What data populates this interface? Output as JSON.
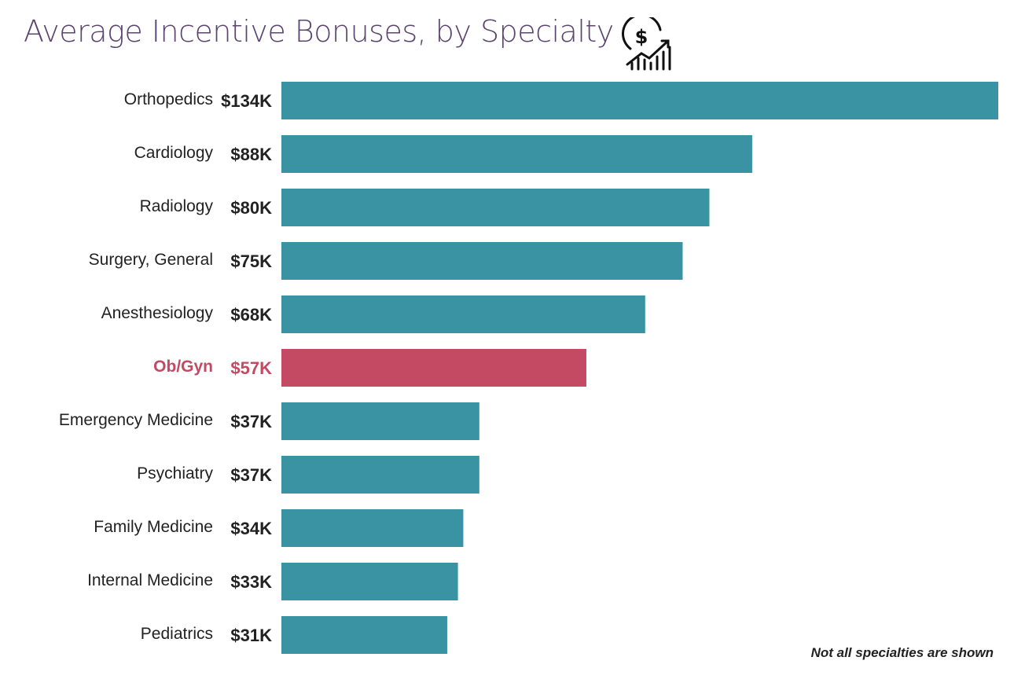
{
  "chart_data": {
    "type": "bar",
    "orientation": "horizontal",
    "title": "Average Incentive Bonuses, by Specialty",
    "categories": [
      "Orthopedics",
      "Cardiology",
      "Radiology",
      "Surgery, General",
      "Anesthesiology",
      "Ob/Gyn",
      "Emergency Medicine",
      "Psychiatry",
      "Family Medicine",
      "Internal Medicine",
      "Pediatrics"
    ],
    "values": [
      134,
      88,
      80,
      75,
      68,
      57,
      37,
      37,
      34,
      33,
      31
    ],
    "value_labels": [
      "$134K",
      "$88K",
      "$80K",
      "$75K",
      "$68K",
      "$57K",
      "$37K",
      "$37K",
      "$34K",
      "$33K",
      "$31K"
    ],
    "unit": "thousand USD",
    "highlight": "Ob/Gyn",
    "colors": {
      "default": "#3a93a3",
      "highlight": "#c44a63",
      "title": "#5b4470"
    },
    "grid": false,
    "note": "Not all specialties are shown",
    "icon": "money-growth-icon"
  }
}
